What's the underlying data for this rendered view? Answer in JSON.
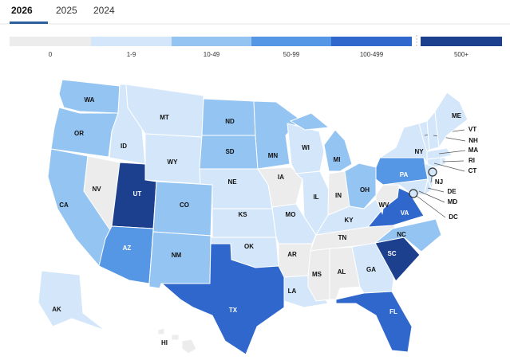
{
  "tabs": [
    {
      "label": "2026",
      "active": true
    },
    {
      "label": "2025",
      "active": false
    },
    {
      "label": "2024",
      "active": false
    }
  ],
  "legend": {
    "bins": [
      {
        "label": "0",
        "color": "#ececec"
      },
      {
        "label": "1-9",
        "color": "#d4e7fa"
      },
      {
        "label": "10-49",
        "color": "#94c4f1"
      },
      {
        "label": "50-99",
        "color": "#5597e4"
      },
      {
        "label": "100-499",
        "color": "#2f67cc"
      },
      {
        "label": "500+",
        "color": "#1c3f8e"
      }
    ]
  },
  "states": [
    {
      "abbr": "WA",
      "bin": 2
    },
    {
      "abbr": "OR",
      "bin": 2
    },
    {
      "abbr": "CA",
      "bin": 2
    },
    {
      "abbr": "NV",
      "bin": 0
    },
    {
      "abbr": "ID",
      "bin": 1
    },
    {
      "abbr": "MT",
      "bin": 1
    },
    {
      "abbr": "WY",
      "bin": 1
    },
    {
      "abbr": "UT",
      "bin": 5
    },
    {
      "abbr": "AZ",
      "bin": 3
    },
    {
      "abbr": "CO",
      "bin": 2
    },
    {
      "abbr": "NM",
      "bin": 2
    },
    {
      "abbr": "ND",
      "bin": 2
    },
    {
      "abbr": "SD",
      "bin": 2
    },
    {
      "abbr": "NE",
      "bin": 1
    },
    {
      "abbr": "KS",
      "bin": 1
    },
    {
      "abbr": "OK",
      "bin": 1
    },
    {
      "abbr": "TX",
      "bin": 4
    },
    {
      "abbr": "MN",
      "bin": 2
    },
    {
      "abbr": "IA",
      "bin": 0
    },
    {
      "abbr": "MO",
      "bin": 1
    },
    {
      "abbr": "AR",
      "bin": 0
    },
    {
      "abbr": "LA",
      "bin": 1
    },
    {
      "abbr": "WI",
      "bin": 1
    },
    {
      "abbr": "IL",
      "bin": 1
    },
    {
      "abbr": "MI",
      "bin": 2
    },
    {
      "abbr": "IN",
      "bin": 0
    },
    {
      "abbr": "OH",
      "bin": 2
    },
    {
      "abbr": "KY",
      "bin": 1
    },
    {
      "abbr": "TN",
      "bin": 0
    },
    {
      "abbr": "MS",
      "bin": 0
    },
    {
      "abbr": "AL",
      "bin": 0
    },
    {
      "abbr": "GA",
      "bin": 1
    },
    {
      "abbr": "FL",
      "bin": 4
    },
    {
      "abbr": "SC",
      "bin": 5
    },
    {
      "abbr": "NC",
      "bin": 2
    },
    {
      "abbr": "VA",
      "bin": 4
    },
    {
      "abbr": "WV",
      "bin": 0
    },
    {
      "abbr": "PA",
      "bin": 3
    },
    {
      "abbr": "NY",
      "bin": 1
    },
    {
      "abbr": "VT",
      "bin": 1
    },
    {
      "abbr": "NH",
      "bin": 1
    },
    {
      "abbr": "ME",
      "bin": 1
    },
    {
      "abbr": "MA",
      "bin": 1
    },
    {
      "abbr": "RI",
      "bin": 1
    },
    {
      "abbr": "CT",
      "bin": 1
    },
    {
      "abbr": "NJ",
      "bin": 1
    },
    {
      "abbr": "DE",
      "bin": 1
    },
    {
      "abbr": "MD",
      "bin": 1
    },
    {
      "abbr": "DC",
      "bin": 1
    },
    {
      "abbr": "AK",
      "bin": 1
    },
    {
      "abbr": "HI",
      "bin": 0
    }
  ]
}
